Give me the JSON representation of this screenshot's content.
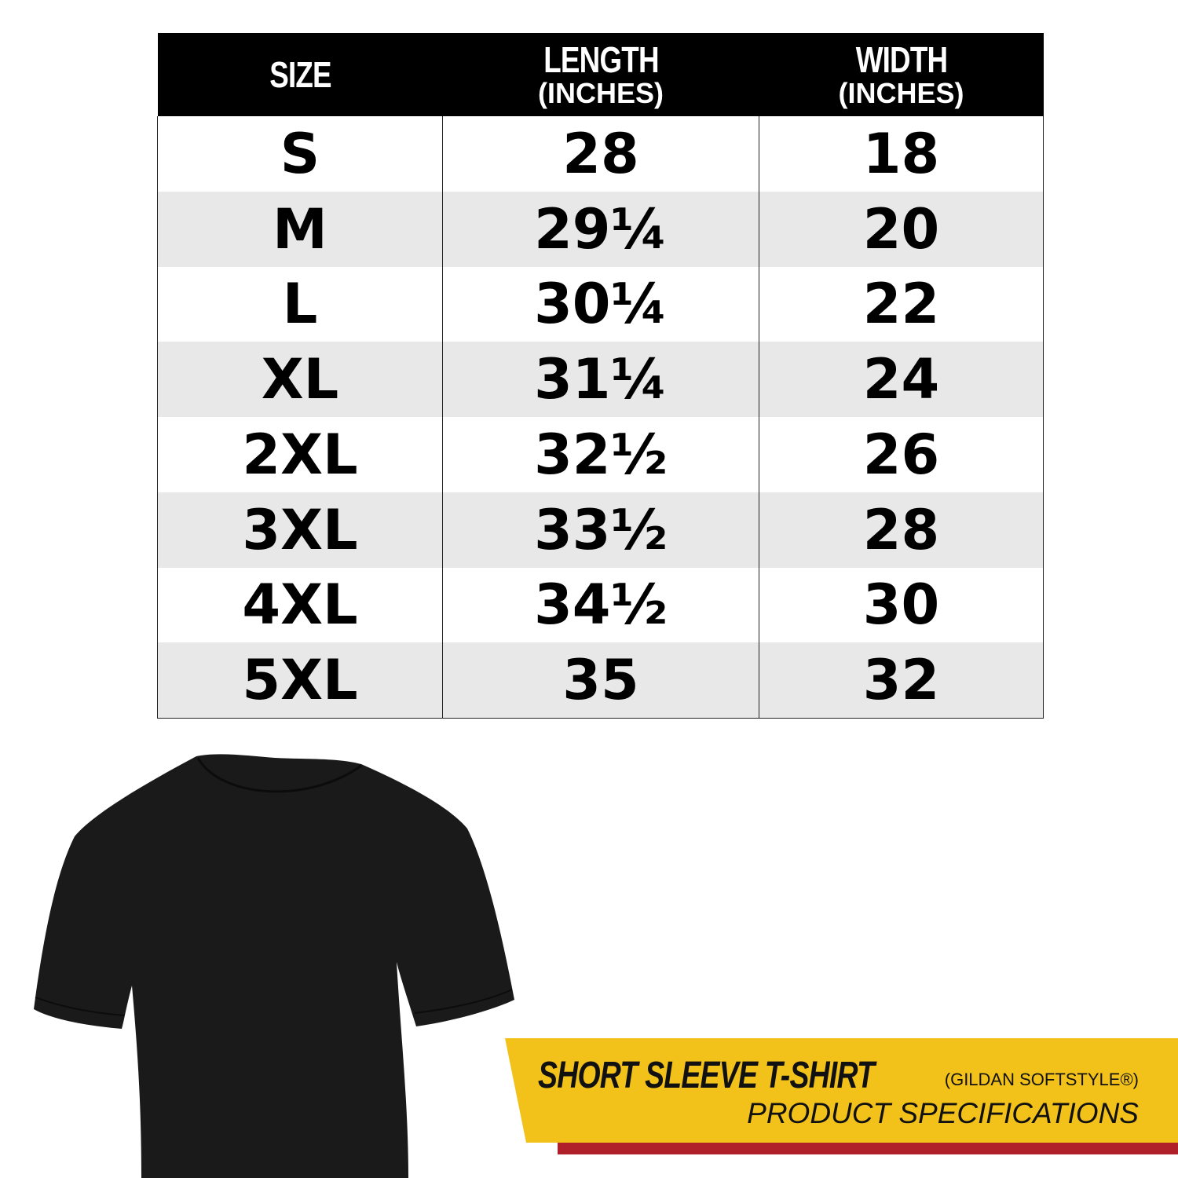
{
  "table": {
    "headers": [
      {
        "main": "SIZE",
        "sub": ""
      },
      {
        "main": "LENGTH",
        "sub": "(INCHES)"
      },
      {
        "main": "WIDTH",
        "sub": "(INCHES)"
      }
    ],
    "rows": [
      [
        "S",
        "28",
        "18"
      ],
      [
        "M",
        "29¼",
        "20"
      ],
      [
        "L",
        "30¼",
        "22"
      ],
      [
        "XL",
        "31¼",
        "24"
      ],
      [
        "2XL",
        "32½",
        "26"
      ],
      [
        "3XL",
        "33½",
        "28"
      ],
      [
        "4XL",
        "34½",
        "30"
      ],
      [
        "5XL",
        "35",
        "32"
      ]
    ]
  },
  "banner": {
    "title": "SHORT SLEEVE T-SHIRT",
    "brand": "(GILDAN SOFTSTYLE®)",
    "subtitle": "PRODUCT SPECIFICATIONS"
  },
  "colors": {
    "banner_yellow": "#f2c21b",
    "banner_red": "#b0202a",
    "header_bg": "#000000",
    "row_alt": "#e8e8e8",
    "shirt": "#1a1a1a"
  },
  "image": {
    "icon": "black-tshirt-icon"
  }
}
